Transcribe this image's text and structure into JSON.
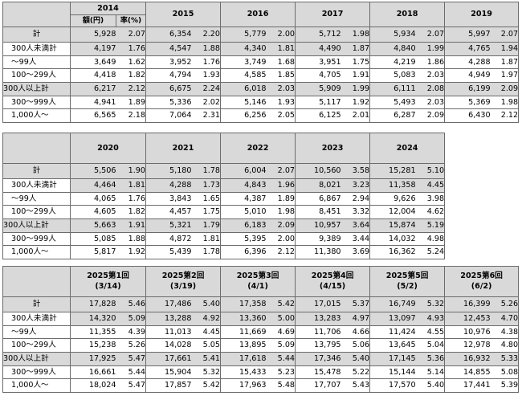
{
  "rows": [
    "計",
    "300人未満計",
    "～99人",
    "100～299人",
    "300人以上計",
    "300～999人",
    "1,000人～"
  ],
  "table1": {
    "columns": [
      "2014",
      "2015",
      "2016",
      "2017",
      "2018",
      "2019"
    ],
    "subheaders": [
      "額(円)",
      "率(%)"
    ],
    "data": [
      [
        [
          "5,928",
          "2.07"
        ],
        [
          "6,354",
          "2.20"
        ],
        [
          "5,779",
          "2.00"
        ],
        [
          "5,712",
          "1.98"
        ],
        [
          "5,934",
          "2.07"
        ],
        [
          "5,997",
          "2.07"
        ]
      ],
      [
        [
          "4,197",
          "1.76"
        ],
        [
          "4,547",
          "1.88"
        ],
        [
          "4,340",
          "1.81"
        ],
        [
          "4,490",
          "1.87"
        ],
        [
          "4,840",
          "1.99"
        ],
        [
          "4,765",
          "1.94"
        ]
      ],
      [
        [
          "3,649",
          "1.62"
        ],
        [
          "3,952",
          "1.76"
        ],
        [
          "3,749",
          "1.68"
        ],
        [
          "3,951",
          "1.75"
        ],
        [
          "4,219",
          "1.86"
        ],
        [
          "4,288",
          "1.87"
        ]
      ],
      [
        [
          "4,418",
          "1.82"
        ],
        [
          "4,794",
          "1.93"
        ],
        [
          "4,585",
          "1.85"
        ],
        [
          "4,705",
          "1.91"
        ],
        [
          "5,083",
          "2.03"
        ],
        [
          "4,949",
          "1.97"
        ]
      ],
      [
        [
          "6,217",
          "2.12"
        ],
        [
          "6,675",
          "2.24"
        ],
        [
          "6,018",
          "2.03"
        ],
        [
          "5,909",
          "1.99"
        ],
        [
          "6,111",
          "2.08"
        ],
        [
          "6,199",
          "2.09"
        ]
      ],
      [
        [
          "4,941",
          "1.89"
        ],
        [
          "5,336",
          "2.02"
        ],
        [
          "5,146",
          "1.93"
        ],
        [
          "5,117",
          "1.92"
        ],
        [
          "5,493",
          "2.03"
        ],
        [
          "5,369",
          "1.98"
        ]
      ],
      [
        [
          "6,565",
          "2.18"
        ],
        [
          "7,064",
          "2.31"
        ],
        [
          "6,256",
          "2.05"
        ],
        [
          "6,125",
          "2.01"
        ],
        [
          "6,287",
          "2.09"
        ],
        [
          "6,430",
          "2.12"
        ]
      ]
    ]
  },
  "table2": {
    "columns": [
      "2020",
      "2021",
      "2022",
      "2023",
      "2024"
    ],
    "data": [
      [
        [
          "5,506",
          "1.90"
        ],
        [
          "5,180",
          "1.78"
        ],
        [
          "6,004",
          "2.07"
        ],
        [
          "10,560",
          "3.58"
        ],
        [
          "15,281",
          "5.10"
        ]
      ],
      [
        [
          "4,464",
          "1.81"
        ],
        [
          "4,288",
          "1.73"
        ],
        [
          "4,843",
          "1.96"
        ],
        [
          "8,021",
          "3.23"
        ],
        [
          "11,358",
          "4.45"
        ]
      ],
      [
        [
          "4,065",
          "1.76"
        ],
        [
          "3,843",
          "1.65"
        ],
        [
          "4,387",
          "1.89"
        ],
        [
          "6,867",
          "2.94"
        ],
        [
          "9,626",
          "3.98"
        ]
      ],
      [
        [
          "4,605",
          "1.82"
        ],
        [
          "4,457",
          "1.75"
        ],
        [
          "5,010",
          "1.98"
        ],
        [
          "8,451",
          "3.32"
        ],
        [
          "12,004",
          "4.62"
        ]
      ],
      [
        [
          "5,663",
          "1.91"
        ],
        [
          "5,321",
          "1.79"
        ],
        [
          "6,183",
          "2.09"
        ],
        [
          "10,957",
          "3.64"
        ],
        [
          "15,874",
          "5.19"
        ]
      ],
      [
        [
          "5,085",
          "1.88"
        ],
        [
          "4,872",
          "1.81"
        ],
        [
          "5,395",
          "2.00"
        ],
        [
          "9,389",
          "3.44"
        ],
        [
          "14,032",
          "4.98"
        ]
      ],
      [
        [
          "5,817",
          "1.92"
        ],
        [
          "5,439",
          "1.78"
        ],
        [
          "6,396",
          "2.12"
        ],
        [
          "11,380",
          "3.69"
        ],
        [
          "16,362",
          "5.24"
        ]
      ]
    ]
  },
  "table3": {
    "columns": [
      {
        "name": "2025第1回",
        "date": "(3/14)"
      },
      {
        "name": "2025第2回",
        "date": "(3/19)"
      },
      {
        "name": "2025第3回",
        "date": "(4/1)"
      },
      {
        "name": "2025第4回",
        "date": "(4/15)"
      },
      {
        "name": "2025第5回",
        "date": "(5/2)"
      },
      {
        "name": "2025第6回",
        "date": "(6/2)"
      }
    ],
    "data": [
      [
        [
          "17,828",
          "5.46"
        ],
        [
          "17,486",
          "5.40"
        ],
        [
          "17,358",
          "5.42"
        ],
        [
          "17,015",
          "5.37"
        ],
        [
          "16,749",
          "5.32"
        ],
        [
          "16,399",
          "5.26"
        ]
      ],
      [
        [
          "14,320",
          "5.09"
        ],
        [
          "13,288",
          "4.92"
        ],
        [
          "13,360",
          "5.00"
        ],
        [
          "13,283",
          "4.97"
        ],
        [
          "13,097",
          "4.93"
        ],
        [
          "12,453",
          "4.70"
        ]
      ],
      [
        [
          "11,355",
          "4.39"
        ],
        [
          "11,013",
          "4.45"
        ],
        [
          "11,669",
          "4.69"
        ],
        [
          "11,706",
          "4.66"
        ],
        [
          "11,424",
          "4.55"
        ],
        [
          "10,976",
          "4.38"
        ]
      ],
      [
        [
          "15,238",
          "5.26"
        ],
        [
          "14,028",
          "5.05"
        ],
        [
          "13,895",
          "5.09"
        ],
        [
          "13,795",
          "5.06"
        ],
        [
          "13,645",
          "5.04"
        ],
        [
          "12,978",
          "4.80"
        ]
      ],
      [
        [
          "17,925",
          "5.47"
        ],
        [
          "17,661",
          "5.41"
        ],
        [
          "17,618",
          "5.44"
        ],
        [
          "17,346",
          "5.40"
        ],
        [
          "17,145",
          "5.36"
        ],
        [
          "16,932",
          "5.33"
        ]
      ],
      [
        [
          "16,661",
          "5.44"
        ],
        [
          "15,904",
          "5.32"
        ],
        [
          "15,433",
          "5.23"
        ],
        [
          "15,478",
          "5.22"
        ],
        [
          "15,144",
          "5.14"
        ],
        [
          "14,855",
          "5.08"
        ]
      ],
      [
        [
          "18,024",
          "5.47"
        ],
        [
          "17,857",
          "5.42"
        ],
        [
          "17,963",
          "5.48"
        ],
        [
          "17,707",
          "5.43"
        ],
        [
          "17,570",
          "5.40"
        ],
        [
          "17,441",
          "5.39"
        ]
      ]
    ]
  }
}
